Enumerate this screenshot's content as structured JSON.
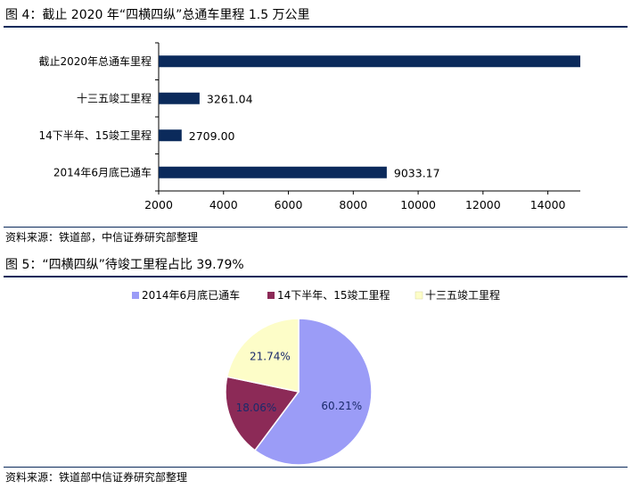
{
  "figure4": {
    "title": "图 4：截止 2020 年“四横四纵”总通车里程 1.5 万公里",
    "source": "资料来源：铁道部，中信证券研究部整理"
  },
  "figure5": {
    "title": "图 5：“四横四纵”待竣工里程占比 39.79%",
    "source": "资料来源：铁道部中信证券研究部整理"
  },
  "chart_data": [
    {
      "type": "bar",
      "orientation": "horizontal",
      "categories": [
        "截止2020年总通车里程",
        "十三五竣工里程",
        "14下半年、15竣工里程",
        "2014年6月底已通车"
      ],
      "values": [
        15003.21,
        3261.04,
        2709.0,
        9033.17
      ],
      "data_labels": [
        "",
        "3261.04",
        "2709.00",
        "9033.17"
      ],
      "xlim": [
        2000,
        15000
      ],
      "xticks": [
        2000,
        4000,
        6000,
        8000,
        10000,
        12000,
        14000
      ],
      "xtick_labels": [
        "2000",
        "4000",
        "6000",
        "8000",
        "10000",
        "12000",
        "14000"
      ],
      "grid": false,
      "bar_color": "#0b2a5b"
    },
    {
      "type": "pie",
      "labels": [
        "2014年6月底已通车",
        "14下半年、15竣工里程",
        "十三五竣工里程"
      ],
      "values": [
        60.21,
        18.06,
        21.74
      ],
      "value_labels": [
        "60.21%",
        "18.06%",
        "21.74%"
      ],
      "colors": [
        "#9b9cf7",
        "#8c2a57",
        "#fdfdc8"
      ],
      "legend_position": "top"
    }
  ]
}
